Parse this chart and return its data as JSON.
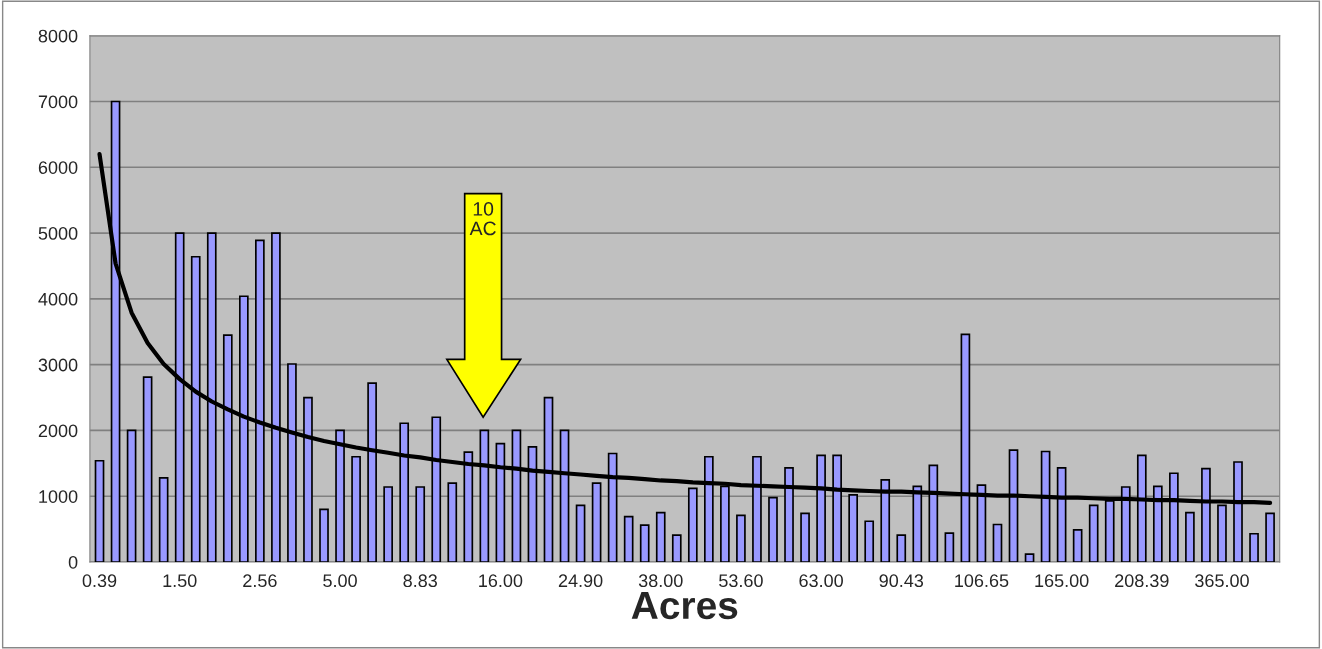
{
  "chart_data": {
    "type": "bar",
    "categories": [
      "0.39",
      null,
      null,
      null,
      null,
      "1.50",
      null,
      null,
      null,
      null,
      "2.56",
      null,
      null,
      null,
      null,
      "5.00",
      null,
      null,
      null,
      null,
      "8.83",
      null,
      null,
      null,
      null,
      "16.00",
      null,
      null,
      null,
      null,
      "24.90",
      null,
      null,
      null,
      null,
      "38.00",
      null,
      null,
      null,
      null,
      "53.60",
      null,
      null,
      null,
      null,
      "63.00",
      null,
      null,
      null,
      null,
      "90.43",
      null,
      null,
      null,
      null,
      "106.65",
      null,
      null,
      null,
      null,
      "165.00",
      null,
      null,
      null,
      null,
      "208.39",
      null,
      null,
      null,
      null,
      "365.00",
      null,
      null,
      null
    ],
    "series": [
      {
        "color": "#9999ff",
        "values": [
          1540,
          7000,
          2000,
          2810,
          1280,
          5000,
          4640,
          5000,
          3450,
          4040,
          4890,
          5000,
          3010,
          2500,
          800,
          2000,
          1600,
          2720,
          1140,
          2110,
          1140,
          2200,
          1200,
          1670,
          2000,
          1800,
          2000,
          1750,
          2500,
          2000,
          860,
          1200,
          1650,
          690,
          560,
          750,
          410,
          1120,
          1600,
          1150,
          710,
          1600,
          980,
          1430,
          740,
          1620,
          1620,
          1020,
          620,
          1250,
          410,
          1150,
          1470,
          440,
          3460,
          1170,
          570,
          1700,
          120,
          1680,
          1430,
          490,
          860,
          930,
          1140,
          1620,
          1150,
          1350,
          750,
          1420,
          860,
          1520,
          430,
          740
        ]
      },
      {
        "type": "line",
        "color": "#000000",
        "values": [
          6200,
          4540,
          3790,
          3330,
          3010,
          2780,
          2590,
          2440,
          2320,
          2210,
          2120,
          2040,
          1970,
          1900,
          1840,
          1790,
          1740,
          1700,
          1660,
          1620,
          1590,
          1550,
          1520,
          1490,
          1470,
          1440,
          1420,
          1390,
          1370,
          1350,
          1330,
          1310,
          1290,
          1280,
          1260,
          1240,
          1230,
          1210,
          1200,
          1190,
          1170,
          1160,
          1150,
          1140,
          1130,
          1120,
          1100,
          1090,
          1080,
          1070,
          1070,
          1060,
          1050,
          1040,
          1030,
          1020,
          1010,
          1010,
          1000,
          990,
          980,
          980,
          970,
          960,
          960,
          950,
          940,
          940,
          930,
          920,
          920,
          910,
          910,
          900
        ]
      }
    ],
    "xlabel": "Acres",
    "ylim": [
      0,
      8000
    ],
    "yticks": [
      0,
      1000,
      2000,
      3000,
      4000,
      5000,
      6000,
      7000,
      8000
    ],
    "grid": "y",
    "annotations": [
      "10\nAC"
    ]
  }
}
